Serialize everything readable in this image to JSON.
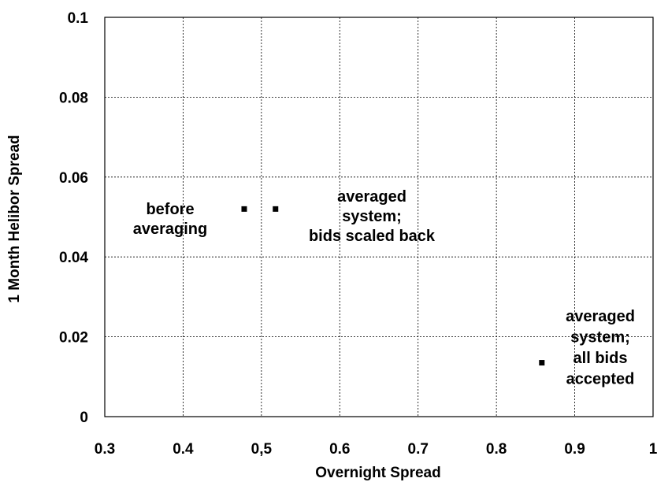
{
  "chart_data": {
    "type": "scatter",
    "title": "",
    "xlabel": "Overnight Spread",
    "ylabel": "1 Month Helibor Spread",
    "xlim": [
      0.3,
      1.0
    ],
    "ylim": [
      0,
      0.1
    ],
    "x_ticks": [
      "0.3",
      "0.4",
      "0,5",
      "0.6",
      "0.7",
      "0.8",
      "0.9",
      "1"
    ],
    "y_ticks": [
      "0",
      "0.02",
      "0.04",
      "0.06",
      "0.08",
      "0.1"
    ],
    "grid": true,
    "legend": "none",
    "marker_color": "#000000",
    "points": [
      {
        "x": 0.478,
        "y": 0.052
      },
      {
        "x": 0.518,
        "y": 0.052
      },
      {
        "x": 0.858,
        "y": 0.0135
      }
    ],
    "annotations": [
      {
        "lines": [
          "before",
          "averaging"
        ]
      },
      {
        "lines": [
          "averaged",
          "system;",
          "bids scaled back"
        ]
      },
      {
        "lines": [
          "averaged",
          "system;",
          "all bids",
          "accepted"
        ]
      }
    ]
  }
}
